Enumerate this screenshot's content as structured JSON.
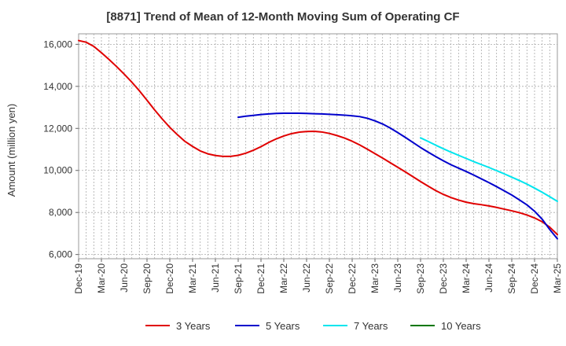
{
  "chart_data": {
    "type": "line",
    "title": "[8871]  Trend of Mean of 12-Month Moving Sum of Operating CF",
    "xlabel": "",
    "ylabel": "Amount (million yen)",
    "ylim": [
      5800,
      16500
    ],
    "yticks": [
      6000,
      8000,
      10000,
      12000,
      14000,
      16000
    ],
    "ytick_labels": [
      "6,000",
      "8,000",
      "10,000",
      "12,000",
      "14,000",
      "16,000"
    ],
    "x_months": 63,
    "x_start": "Dec-19",
    "xtick_labels": [
      "Dec-19",
      "Mar-20",
      "Jun-20",
      "Sep-20",
      "Dec-20",
      "Mar-21",
      "Jun-21",
      "Sep-21",
      "Dec-21",
      "Mar-22",
      "Jun-22",
      "Sep-22",
      "Dec-22",
      "Mar-23",
      "Jun-23",
      "Sep-23",
      "Dec-23",
      "Mar-24",
      "Jun-24",
      "Sep-24",
      "Dec-24",
      "Mar-25"
    ],
    "grid": true,
    "legend_position": "bottom",
    "series": [
      {
        "name": "3 Years",
        "color": "#e00000",
        "x": [
          0,
          1,
          2,
          3,
          4,
          5,
          6,
          7,
          8,
          9,
          10,
          11,
          12,
          13,
          14,
          15,
          16,
          17,
          18,
          19,
          20,
          21,
          22,
          23,
          24,
          25,
          26,
          27,
          28,
          29,
          30,
          31,
          32,
          33,
          34,
          35,
          36,
          37,
          38,
          39,
          40,
          41,
          42,
          43,
          44,
          45,
          46,
          47,
          48,
          49,
          50,
          51,
          52,
          53,
          54,
          55,
          56,
          57
        ],
        "values": [
          16180,
          16100,
          15900,
          15600,
          15280,
          14940,
          14580,
          14200,
          13790,
          13340,
          12880,
          12450,
          12050,
          11700,
          11380,
          11140,
          10930,
          10790,
          10710,
          10670,
          10670,
          10720,
          10820,
          10960,
          11130,
          11330,
          11500,
          11640,
          11750,
          11820,
          11850,
          11860,
          11830,
          11760,
          11660,
          11540,
          11390,
          11210,
          11010,
          10800,
          10590,
          10370,
          10150,
          9930,
          9700,
          9470,
          9250,
          9040,
          8860,
          8710,
          8590,
          8490,
          8420,
          8370,
          8310,
          8240,
          8160,
          8080
        ]
      },
      {
        "name": "5 Years",
        "color": "#0000cc",
        "x": [
          21,
          22,
          23,
          24,
          25,
          26,
          27,
          28,
          29,
          30,
          31,
          32,
          33,
          34,
          35,
          36,
          37,
          38,
          39,
          40,
          41,
          42,
          43,
          44,
          45,
          46,
          47,
          48,
          49,
          50,
          51,
          52,
          53,
          54,
          55,
          56,
          57
        ],
        "values": [
          12530,
          12580,
          12620,
          12660,
          12690,
          12710,
          12720,
          12720,
          12720,
          12710,
          12700,
          12690,
          12670,
          12650,
          12630,
          12600,
          12560,
          12480,
          12360,
          12210,
          12020,
          11800,
          11570,
          11330,
          11090,
          10870,
          10660,
          10460,
          10270,
          10110,
          9950,
          9780,
          9600,
          9420,
          9230,
          9030,
          8830
        ]
      },
      {
        "name": "7 Years",
        "color": "#00e5ee",
        "x": [
          45,
          46,
          47,
          48,
          49,
          50,
          51,
          52,
          53,
          54,
          55,
          56,
          57
        ],
        "values": [
          11550,
          11380,
          11200,
          11030,
          10870,
          10720,
          10570,
          10420,
          10280,
          10140,
          9990,
          9840,
          9680
        ]
      },
      {
        "name": "10 Years",
        "color": "#007700",
        "x": [],
        "values": []
      }
    ],
    "series_tail": [
      {
        "name": "3 Years",
        "x": [
          58,
          59,
          60,
          61,
          62,
          63
        ],
        "values": [
          7990,
          7880,
          7740,
          7560,
          7300,
          6950
        ]
      },
      {
        "name": "5 Years",
        "x": [
          58,
          59,
          60,
          61,
          62,
          63
        ],
        "values": [
          8600,
          8360,
          8060,
          7680,
          7190,
          6750
        ]
      },
      {
        "name": "7 Years",
        "x": [
          58,
          59,
          60,
          61,
          62,
          63
        ],
        "values": [
          9520,
          9350,
          9160,
          8960,
          8750,
          8530
        ]
      }
    ]
  }
}
